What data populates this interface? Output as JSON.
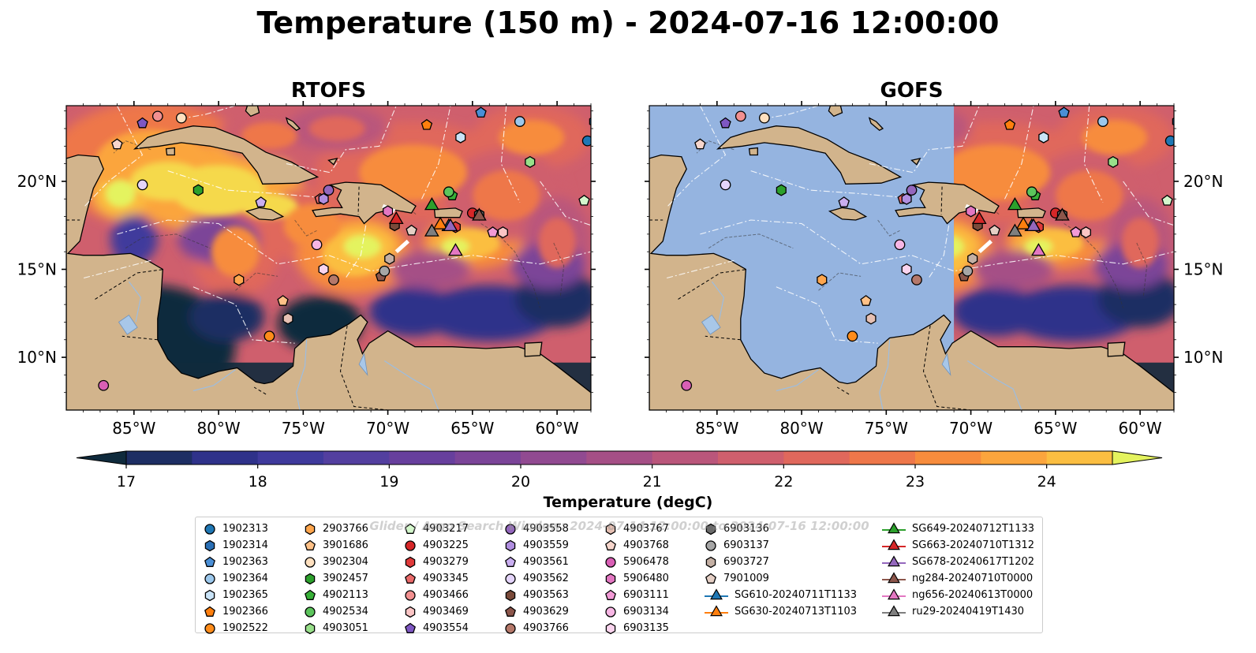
{
  "figure": {
    "title": "Temperature (150 m) - 2024-07-16 12:00:00",
    "watermark": "Glider / Argo Search Window: 2024-07-14 12:00:00 to 2024-07-16 12:00:00"
  },
  "colors": {
    "land": "#d2b48c",
    "no_data_ocean": "#95b4e0",
    "colormap": [
      "#0f2a3c",
      "#1d2e63",
      "#2f328a",
      "#3f3a9c",
      "#533f9f",
      "#673f9d",
      "#7b4498",
      "#914a91",
      "#a54f86",
      "#ba567b",
      "#cf5f6d",
      "#e0685c",
      "#ee774a",
      "#f78c3d",
      "#fba53d",
      "#fbbe41",
      "#f5d94b",
      "#e4f35e"
    ]
  },
  "colorbar": {
    "label": "Temperature (degC)",
    "ticks": [
      "17",
      "18",
      "19",
      "20",
      "21",
      "22",
      "23",
      "24"
    ],
    "extend": "both"
  },
  "chart_data": [
    {
      "type": "heatmap",
      "title": "RTOFS",
      "model": "RTOFS",
      "variable": "Temperature (degC)",
      "depth": "150 m",
      "xlim": [
        -89,
        -58
      ],
      "ylim": [
        7,
        24.3
      ],
      "xticks": [
        "85°W",
        "80°W",
        "75°W",
        "70°W",
        "65°W",
        "60°W"
      ],
      "yticks": [
        "20°N",
        "15°N",
        "10°N"
      ],
      "yticks_side": "left",
      "coverage": "full"
    },
    {
      "type": "heatmap",
      "title": "GOFS",
      "model": "GOFS",
      "variable": "Temperature (degC)",
      "depth": "150 m",
      "xlim": [
        -89,
        -58
      ],
      "ylim": [
        7,
        24.3
      ],
      "xticks": [
        "85°W",
        "80°W",
        "75°W",
        "70°W",
        "65°W",
        "60°W"
      ],
      "yticks": [
        "20°N",
        "15°N",
        "10°N"
      ],
      "yticks_side": "right",
      "coverage": "east of 71°W only"
    }
  ],
  "legend": {
    "columns": [
      [
        {
          "label": "1902313",
          "shape": "circle",
          "color": "#1f77b4"
        },
        {
          "label": "1902314",
          "shape": "hexagon",
          "color": "#2a6fb5"
        },
        {
          "label": "1902363",
          "shape": "pentagon",
          "color": "#4a8fd6"
        },
        {
          "label": "1902364",
          "shape": "circle",
          "color": "#9cc8ec"
        },
        {
          "label": "1902365",
          "shape": "hexagon",
          "color": "#c9e3f7"
        },
        {
          "label": "1902366",
          "shape": "pentagon",
          "color": "#ff7f0e"
        },
        {
          "label": "1902522",
          "shape": "circle",
          "color": "#ff8c1a"
        }
      ],
      [
        {
          "label": "2903766",
          "shape": "hexagon",
          "color": "#ffa64d"
        },
        {
          "label": "3901686",
          "shape": "pentagon",
          "color": "#ffc187"
        },
        {
          "label": "3902304",
          "shape": "circle",
          "color": "#ffe0bf"
        },
        {
          "label": "3902457",
          "shape": "hexagon",
          "color": "#2ca02c"
        },
        {
          "label": "4902113",
          "shape": "pentagon",
          "color": "#38b038"
        },
        {
          "label": "4902534",
          "shape": "circle",
          "color": "#5cc45c"
        },
        {
          "label": "4903051",
          "shape": "hexagon",
          "color": "#98df8a"
        }
      ],
      [
        {
          "label": "4903217",
          "shape": "pentagon",
          "color": "#d4f7cc"
        },
        {
          "label": "4903225",
          "shape": "circle",
          "color": "#d62728"
        },
        {
          "label": "4903279",
          "shape": "hexagon",
          "color": "#e03a3a"
        },
        {
          "label": "4903345",
          "shape": "pentagon",
          "color": "#ea6a6a"
        },
        {
          "label": "4903466",
          "shape": "circle",
          "color": "#f29090"
        },
        {
          "label": "4903469",
          "shape": "hexagon",
          "color": "#fbc5c5"
        },
        {
          "label": "4903554",
          "shape": "pentagon",
          "color": "#7e57c2"
        }
      ],
      [
        {
          "label": "4903558",
          "shape": "circle",
          "color": "#9467bd"
        },
        {
          "label": "4903559",
          "shape": "hexagon",
          "color": "#b08ee0"
        },
        {
          "label": "4903561",
          "shape": "pentagon",
          "color": "#c9aef0"
        },
        {
          "label": "4903562",
          "shape": "circle",
          "color": "#e4d4fa"
        },
        {
          "label": "4903563",
          "shape": "hexagon",
          "color": "#7a4a3a"
        },
        {
          "label": "4903629",
          "shape": "pentagon",
          "color": "#8c564b"
        },
        {
          "label": "4903766",
          "shape": "circle",
          "color": "#b5786a"
        }
      ],
      [
        {
          "label": "4903767",
          "shape": "hexagon",
          "color": "#e6c0b3"
        },
        {
          "label": "4903768",
          "shape": "pentagon",
          "color": "#f7d6cc"
        },
        {
          "label": "5906478",
          "shape": "circle",
          "color": "#d95fb5"
        },
        {
          "label": "5906480",
          "shape": "hexagon",
          "color": "#e377c2"
        },
        {
          "label": "6903111",
          "shape": "pentagon",
          "color": "#f29ad6"
        },
        {
          "label": "6903134",
          "shape": "circle",
          "color": "#f7b6e4"
        },
        {
          "label": "6903135",
          "shape": "hexagon",
          "color": "#fad4ee"
        }
      ],
      [
        {
          "label": "6903136",
          "shape": "hexagon",
          "color": "#6b6b6b"
        },
        {
          "label": "6903137",
          "shape": "circle",
          "color": "#a6a6a6"
        },
        {
          "label": "6903727",
          "shape": "hexagon",
          "color": "#c4b0a4"
        },
        {
          "label": "7901009",
          "shape": "pentagon",
          "color": "#e5cfc5"
        },
        {
          "label": "SG610-20240711T1133",
          "shape": "triangle",
          "color": "#1f77b4"
        },
        {
          "label": "SG630-20240713T1103",
          "shape": "triangle",
          "color": "#ff7f0e"
        }
      ],
      [
        {
          "label": "SG649-20240712T1133",
          "shape": "triangle",
          "color": "#2ca02c"
        },
        {
          "label": "SG663-20240710T1312",
          "shape": "triangle",
          "color": "#d62728"
        },
        {
          "label": "SG678-20240617T1202",
          "shape": "triangle",
          "color": "#9467bd"
        },
        {
          "label": "ng284-20240710T0000",
          "shape": "triangle",
          "color": "#8c564b"
        },
        {
          "label": "ng656-20240613T0000",
          "shape": "triangle",
          "color": "#e377c2"
        },
        {
          "label": "ru29-20240419T1430",
          "shape": "triangle",
          "color": "#7f7f7f"
        }
      ]
    ]
  },
  "markers": [
    {
      "id": "1902313",
      "lon": -58.2,
      "lat": 22.3
    },
    {
      "id": "1902314",
      "lon": -57.8,
      "lat": 23.4
    },
    {
      "id": "1902363",
      "lon": -64.5,
      "lat": 23.9
    },
    {
      "id": "1902364",
      "lon": -62.2,
      "lat": 23.4
    },
    {
      "id": "1902365",
      "lon": -65.7,
      "lat": 22.5
    },
    {
      "id": "1902366",
      "lon": -67.7,
      "lat": 23.2
    },
    {
      "id": "1902522",
      "lon": -77.0,
      "lat": 11.2
    },
    {
      "id": "2903766",
      "lon": -78.8,
      "lat": 14.4
    },
    {
      "id": "3901686",
      "lon": -76.2,
      "lat": 13.2
    },
    {
      "id": "3902304",
      "lon": -82.2,
      "lat": 23.6
    },
    {
      "id": "3902457",
      "lon": -81.2,
      "lat": 19.5
    },
    {
      "id": "4902113",
      "lon": -66.2,
      "lat": 19.2
    },
    {
      "id": "4902534",
      "lon": -66.4,
      "lat": 19.4
    },
    {
      "id": "4903051",
      "lon": -61.6,
      "lat": 21.1
    },
    {
      "id": "4903217",
      "lon": -58.4,
      "lat": 18.9
    },
    {
      "id": "4903225",
      "lon": -65.0,
      "lat": 18.2
    },
    {
      "id": "4903279",
      "lon": -66.0,
      "lat": 17.4
    },
    {
      "id": "4903345",
      "lon": -74.0,
      "lat": 19.0
    },
    {
      "id": "4903466",
      "lon": -83.6,
      "lat": 23.7
    },
    {
      "id": "4903469",
      "lon": -63.2,
      "lat": 17.1
    },
    {
      "id": "4903554",
      "lon": -84.5,
      "lat": 23.3
    },
    {
      "id": "4903558",
      "lon": -73.5,
      "lat": 19.5
    },
    {
      "id": "4903559",
      "lon": -73.8,
      "lat": 19.0
    },
    {
      "id": "4903561",
      "lon": -77.5,
      "lat": 18.8
    },
    {
      "id": "4903562",
      "lon": -84.5,
      "lat": 19.8
    },
    {
      "id": "4903563",
      "lon": -69.6,
      "lat": 17.5
    },
    {
      "id": "4903629",
      "lon": -70.4,
      "lat": 14.6
    },
    {
      "id": "4903766",
      "lon": -73.2,
      "lat": 14.4
    },
    {
      "id": "4903767",
      "lon": -75.9,
      "lat": 12.2
    },
    {
      "id": "4903768",
      "lon": -86.0,
      "lat": 22.1
    },
    {
      "id": "5906478",
      "lon": -86.8,
      "lat": 8.4
    },
    {
      "id": "5906480",
      "lon": -70.0,
      "lat": 18.3
    },
    {
      "id": "6903111",
      "lon": -63.8,
      "lat": 17.1
    },
    {
      "id": "6903134",
      "lon": -74.2,
      "lat": 16.4
    },
    {
      "id": "6903135",
      "lon": -73.8,
      "lat": 15.0
    },
    {
      "id": "6903136",
      "lon": -64.6,
      "lat": 18.1
    },
    {
      "id": "6903137",
      "lon": -70.2,
      "lat": 14.9
    },
    {
      "id": "6903727",
      "lon": -69.9,
      "lat": 15.6
    },
    {
      "id": "7901009",
      "lon": -68.6,
      "lat": 17.2
    },
    {
      "id": "SG610-20240711T1133",
      "lon": -66.4,
      "lat": 17.5
    },
    {
      "id": "SG630-20240713T1103",
      "lon": -66.9,
      "lat": 17.6
    },
    {
      "id": "SG649-20240712T1133",
      "lon": -67.4,
      "lat": 18.7
    },
    {
      "id": "SG663-20240710T1312",
      "lon": -69.5,
      "lat": 17.9
    },
    {
      "id": "SG678-20240617T1202",
      "lon": -66.3,
      "lat": 17.5
    },
    {
      "id": "ng284-20240710T0000",
      "lon": -64.6,
      "lat": 18.1
    },
    {
      "id": "ng656-20240613T0000",
      "lon": -66.0,
      "lat": 16.1
    },
    {
      "id": "ru29-20240419T1430",
      "lon": -67.4,
      "lat": 17.2
    }
  ]
}
